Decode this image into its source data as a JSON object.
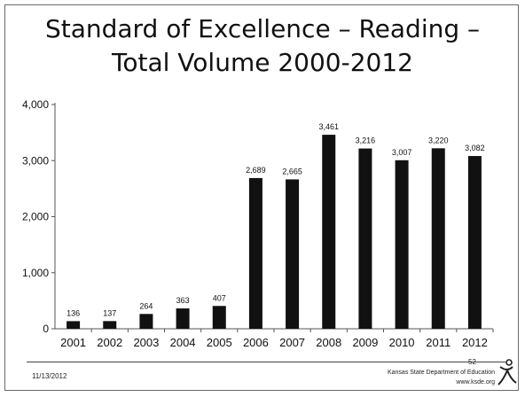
{
  "slide": {
    "title_line1": "Standard of Excellence – Reading –",
    "title_line2": "Total Volume 2000-2012",
    "footer_date": "11/13/2012",
    "page_number": "52",
    "org_name": "Kansas State Department of Education",
    "org_url": "www.ksde.org"
  },
  "chart_data": {
    "type": "bar",
    "title": "Standard of Excellence – Reading – Total Volume 2000-2012",
    "categories": [
      "2001",
      "2002",
      "2003",
      "2004",
      "2005",
      "2006",
      "2007",
      "2008",
      "2009",
      "2010",
      "2011",
      "2012"
    ],
    "values": [
      136,
      137,
      264,
      363,
      407,
      2689,
      2665,
      3461,
      3216,
      3007,
      3220,
      3082
    ],
    "value_labels": [
      "136",
      "137",
      "264",
      "363",
      "407",
      "2,689",
      "2,665",
      "3,461",
      "3,216",
      "3,007",
      "3,220",
      "3,082"
    ],
    "yticks": [
      0,
      1000,
      2000,
      3000,
      4000
    ],
    "ytick_labels": [
      "0",
      "1,000",
      "2,000",
      "3,000",
      "4,000"
    ],
    "ylim": [
      0,
      4000
    ],
    "xlabel": "",
    "ylabel": "",
    "bar_color": "#111111",
    "grid": false,
    "legend": "none"
  }
}
